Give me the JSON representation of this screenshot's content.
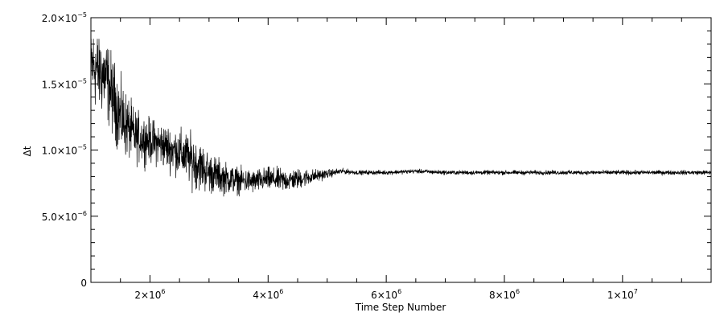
{
  "chart_data": {
    "type": "line",
    "title": "",
    "xlabel": "Time Step Number",
    "ylabel": "Δt",
    "xlim": [
      1000000,
      11500000
    ],
    "ylim": [
      0,
      2e-05
    ],
    "grid": false,
    "colors": {
      "line": "#000000",
      "axes": "#000000",
      "background": "#ffffff"
    },
    "x_ticks": [
      {
        "value": 2000000,
        "mantissa": "2×10",
        "exponent": "6"
      },
      {
        "value": 4000000,
        "mantissa": "4×10",
        "exponent": "6"
      },
      {
        "value": 6000000,
        "mantissa": "6×10",
        "exponent": "6"
      },
      {
        "value": 8000000,
        "mantissa": "8×10",
        "exponent": "6"
      },
      {
        "value": 10000000,
        "mantissa": "1×10",
        "exponent": "7"
      }
    ],
    "y_ticks": [
      {
        "value": 0,
        "mantissa": "0",
        "exponent": ""
      },
      {
        "value": 5e-06,
        "mantissa": "5.0×10",
        "exponent": "−6"
      },
      {
        "value": 1e-05,
        "mantissa": "1.0×10",
        "exponent": "−5"
      },
      {
        "value": 1.5e-05,
        "mantissa": "1.5×10",
        "exponent": "−5"
      },
      {
        "value": 2e-05,
        "mantissa": "2.0×10",
        "exponent": "−5"
      }
    ],
    "series": [
      {
        "x": [
          1000000,
          1250000,
          1500000,
          1750000,
          2000000,
          2250000,
          2500000,
          2750000,
          3000000,
          3250000,
          3500000,
          3750000,
          4000000,
          4250000,
          4500000,
          4750000,
          5000000,
          5250000,
          5500000,
          6000000,
          6500000,
          7000000,
          7500000,
          8000000,
          8500000,
          9000000,
          9500000,
          10000000,
          10500000,
          11000000,
          11500000
        ],
        "y": [
          1.65e-05,
          1.55e-05,
          1.25e-05,
          1.1e-05,
          1.07e-05,
          1.03e-05,
          9.8e-06,
          9.1e-06,
          8.3e-06,
          7.9e-06,
          7.7e-06,
          7.6e-06,
          7.8e-06,
          7.7e-06,
          7.8e-06,
          8e-06,
          8.2e-06,
          8.4e-06,
          8.3e-06,
          8.3e-06,
          8.4e-06,
          8.3e-06,
          8.3e-06,
          8.3e-06,
          8.3e-06,
          8.3e-06,
          8.3e-06,
          8.3e-06,
          8.3e-06,
          8.3e-06,
          8.3e-06
        ],
        "noise": [
          2.8e-06,
          2.8e-06,
          2.5e-06,
          1.8e-06,
          1.5e-06,
          1.5e-06,
          1.6e-06,
          1.8e-06,
          1.4e-06,
          1.1e-06,
          9e-07,
          8e-07,
          8e-07,
          8e-07,
          7e-07,
          5e-07,
          3e-07,
          2e-07,
          1.5e-07,
          1.5e-07,
          1.5e-07,
          1.5e-07,
          1.5e-07,
          1.5e-07,
          1.5e-07,
          1.5e-07,
          1.5e-07,
          1.5e-07,
          1.5e-07,
          1.5e-07,
          1.5e-07
        ]
      }
    ]
  }
}
